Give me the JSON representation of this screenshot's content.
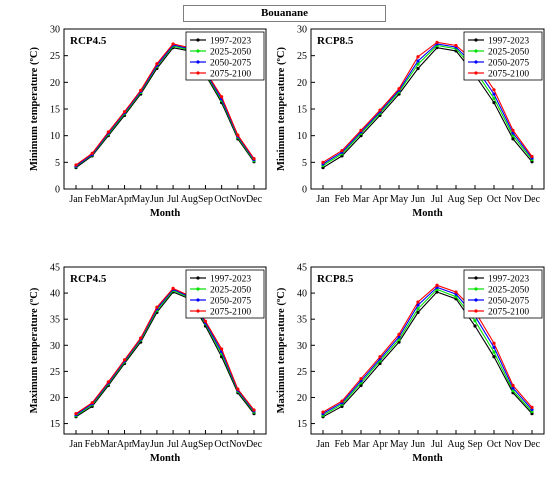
{
  "title": "Bouanane",
  "chart_data": [
    {
      "type": "line",
      "panel": "RCP4.5",
      "xlabel": "Month",
      "ylabel": "Minimum temperature (ºC)",
      "ylim": [
        0,
        30
      ],
      "yticks": [
        0,
        5,
        10,
        15,
        20,
        25,
        30
      ],
      "legend_position": "top-right",
      "categories": [
        "Jan",
        "Feb",
        "Mar",
        "Apr",
        "May",
        "Jun",
        "Jul",
        "Aug",
        "Sep",
        "Oct",
        "Nov",
        "Dec"
      ],
      "series": [
        {
          "name": "1997-2023",
          "color": "#000000",
          "values": [
            4.0,
            6.2,
            10.0,
            13.8,
            17.8,
            22.6,
            26.5,
            25.9,
            21.4,
            16.2,
            9.4,
            5.1
          ]
        },
        {
          "name": "2025-2050",
          "color": "#00e000",
          "values": [
            4.2,
            6.4,
            10.3,
            14.1,
            18.1,
            23.0,
            26.8,
            26.1,
            21.7,
            16.6,
            9.7,
            5.3
          ]
        },
        {
          "name": "2050-2075",
          "color": "#0000ff",
          "values": [
            4.3,
            6.5,
            10.5,
            14.3,
            18.3,
            23.2,
            27.0,
            26.3,
            21.9,
            16.9,
            9.9,
            5.5
          ]
        },
        {
          "name": "2075-2100",
          "color": "#ff0000",
          "values": [
            4.5,
            6.7,
            10.7,
            14.5,
            18.5,
            23.5,
            27.2,
            26.5,
            22.1,
            17.3,
            10.1,
            5.7
          ]
        }
      ]
    },
    {
      "type": "line",
      "panel": "RCP8.5",
      "xlabel": "Month",
      "ylabel": "Minimum temperature (ºC)",
      "ylim": [
        0,
        30
      ],
      "yticks": [
        0,
        5,
        10,
        15,
        20,
        25,
        30
      ],
      "legend_position": "top-right",
      "categories": [
        "Jan",
        "Feb",
        "Mar",
        "Apr",
        "May",
        "Jun",
        "Jul",
        "Aug",
        "Sep",
        "Oct",
        "Nov",
        "Dec"
      ],
      "series": [
        {
          "name": "1997-2023",
          "color": "#000000",
          "values": [
            4.0,
            6.2,
            10.0,
            13.8,
            17.8,
            22.6,
            26.5,
            25.9,
            21.4,
            16.2,
            9.4,
            5.1
          ]
        },
        {
          "name": "2025-2050",
          "color": "#00e000",
          "values": [
            4.4,
            6.6,
            10.4,
            14.2,
            18.2,
            23.4,
            26.9,
            26.3,
            22.2,
            17.0,
            10.0,
            5.5
          ]
        },
        {
          "name": "2050-2075",
          "color": "#0000ff",
          "values": [
            4.7,
            6.9,
            10.7,
            14.5,
            18.5,
            24.0,
            27.2,
            26.6,
            23.0,
            17.8,
            10.5,
            5.8
          ]
        },
        {
          "name": "2075-2100",
          "color": "#ff0000",
          "values": [
            5.0,
            7.2,
            11.0,
            14.8,
            18.8,
            24.8,
            27.5,
            26.9,
            23.9,
            18.6,
            11.0,
            6.1
          ]
        }
      ]
    },
    {
      "type": "line",
      "panel": "RCP4.5",
      "xlabel": "Month",
      "ylabel": "Maximum temperature (ºC)",
      "ylim": [
        13,
        45
      ],
      "yticks": [
        15,
        20,
        25,
        30,
        35,
        40,
        45
      ],
      "legend_position": "top-right",
      "categories": [
        "Jan",
        "Feb",
        "Mar",
        "Apr",
        "May",
        "Jun",
        "Jul",
        "Aug",
        "Sep",
        "Oct",
        "Nov",
        "Dec"
      ],
      "series": [
        {
          "name": "1997-2023",
          "color": "#000000",
          "values": [
            16.3,
            18.3,
            22.3,
            26.5,
            30.6,
            36.3,
            40.2,
            38.9,
            33.7,
            27.8,
            20.9,
            16.9
          ]
        },
        {
          "name": "2025-2050",
          "color": "#00e000",
          "values": [
            16.5,
            18.6,
            22.6,
            26.8,
            31.0,
            36.7,
            40.5,
            39.1,
            34.1,
            28.4,
            21.2,
            17.2
          ]
        },
        {
          "name": "2050-2075",
          "color": "#0000ff",
          "values": [
            16.7,
            18.8,
            22.8,
            27.0,
            31.2,
            37.0,
            40.7,
            39.3,
            34.3,
            28.8,
            21.4,
            17.4
          ]
        },
        {
          "name": "2075-2100",
          "color": "#ff0000",
          "values": [
            16.9,
            19.0,
            23.0,
            27.2,
            31.4,
            37.3,
            40.9,
            39.5,
            34.6,
            29.3,
            21.6,
            17.6
          ]
        }
      ]
    },
    {
      "type": "line",
      "panel": "RCP8.5",
      "xlabel": "Month",
      "ylabel": "Maximum temperature (ºC)",
      "ylim": [
        13,
        45
      ],
      "yticks": [
        15,
        20,
        25,
        30,
        35,
        40,
        45
      ],
      "legend_position": "top-right",
      "categories": [
        "Jan",
        "Feb",
        "Mar",
        "Apr",
        "May",
        "Jun",
        "Jul",
        "Aug",
        "Sep",
        "Oct",
        "Nov",
        "Dec"
      ],
      "series": [
        {
          "name": "1997-2023",
          "color": "#000000",
          "values": [
            16.3,
            18.3,
            22.3,
            26.5,
            30.6,
            36.3,
            40.2,
            38.9,
            33.7,
            27.8,
            20.9,
            16.9
          ]
        },
        {
          "name": "2025-2050",
          "color": "#00e000",
          "values": [
            16.6,
            18.7,
            22.8,
            27.0,
            31.1,
            37.0,
            40.7,
            39.3,
            34.7,
            28.7,
            21.3,
            17.3
          ]
        },
        {
          "name": "2050-2075",
          "color": "#0000ff",
          "values": [
            16.9,
            19.0,
            23.2,
            27.4,
            31.6,
            37.7,
            41.1,
            39.8,
            35.6,
            29.6,
            21.8,
            17.7
          ]
        },
        {
          "name": "2075-2100",
          "color": "#ff0000",
          "values": [
            17.2,
            19.3,
            23.6,
            27.8,
            32.1,
            38.3,
            41.5,
            40.2,
            36.5,
            30.4,
            22.3,
            18.1
          ]
        }
      ]
    }
  ]
}
